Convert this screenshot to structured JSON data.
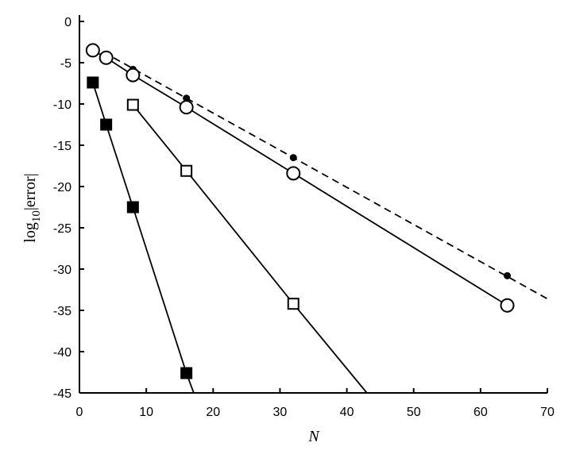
{
  "chart_data": {
    "type": "line",
    "title": "",
    "xlabel": "N",
    "ylabel_main": "log",
    "ylabel_sub": "10",
    "ylabel_tail": "|error|",
    "xlim": [
      0,
      70
    ],
    "ylim": [
      -45,
      0
    ],
    "xticks": [
      0,
      10,
      20,
      30,
      40,
      50,
      60,
      70
    ],
    "yticks": [
      0,
      -5,
      -10,
      -15,
      -20,
      -25,
      -30,
      -35,
      -40,
      -45
    ],
    "grid": false,
    "series": [
      {
        "marker": "filled-dot",
        "line": "none",
        "x": [
          2,
          4,
          8,
          16,
          32,
          64
        ],
        "y": [
          -3.1,
          -4.0,
          -5.8,
          -9.3,
          -16.5,
          -30.8
        ]
      },
      {
        "marker": "none",
        "line": "dashed",
        "x": [
          2,
          70
        ],
        "y": [
          -3.0,
          -33.6
        ]
      },
      {
        "marker": "open-circle",
        "line": "solid",
        "x": [
          2,
          4,
          8,
          16,
          32,
          64
        ],
        "y": [
          -3.5,
          -4.4,
          -6.5,
          -10.4,
          -18.4,
          -34.4
        ]
      },
      {
        "marker": "open-square",
        "line": "solid",
        "x": [
          8,
          16,
          32,
          43
        ],
        "y": [
          -10.1,
          -18.1,
          -34.2,
          -45
        ],
        "marker_count": 3
      },
      {
        "marker": "filled-square",
        "line": "solid",
        "x": [
          2,
          4,
          8,
          16,
          17.1
        ],
        "y": [
          -7.4,
          -12.5,
          -22.5,
          -42.6,
          -45
        ],
        "marker_count": 4
      }
    ]
  }
}
